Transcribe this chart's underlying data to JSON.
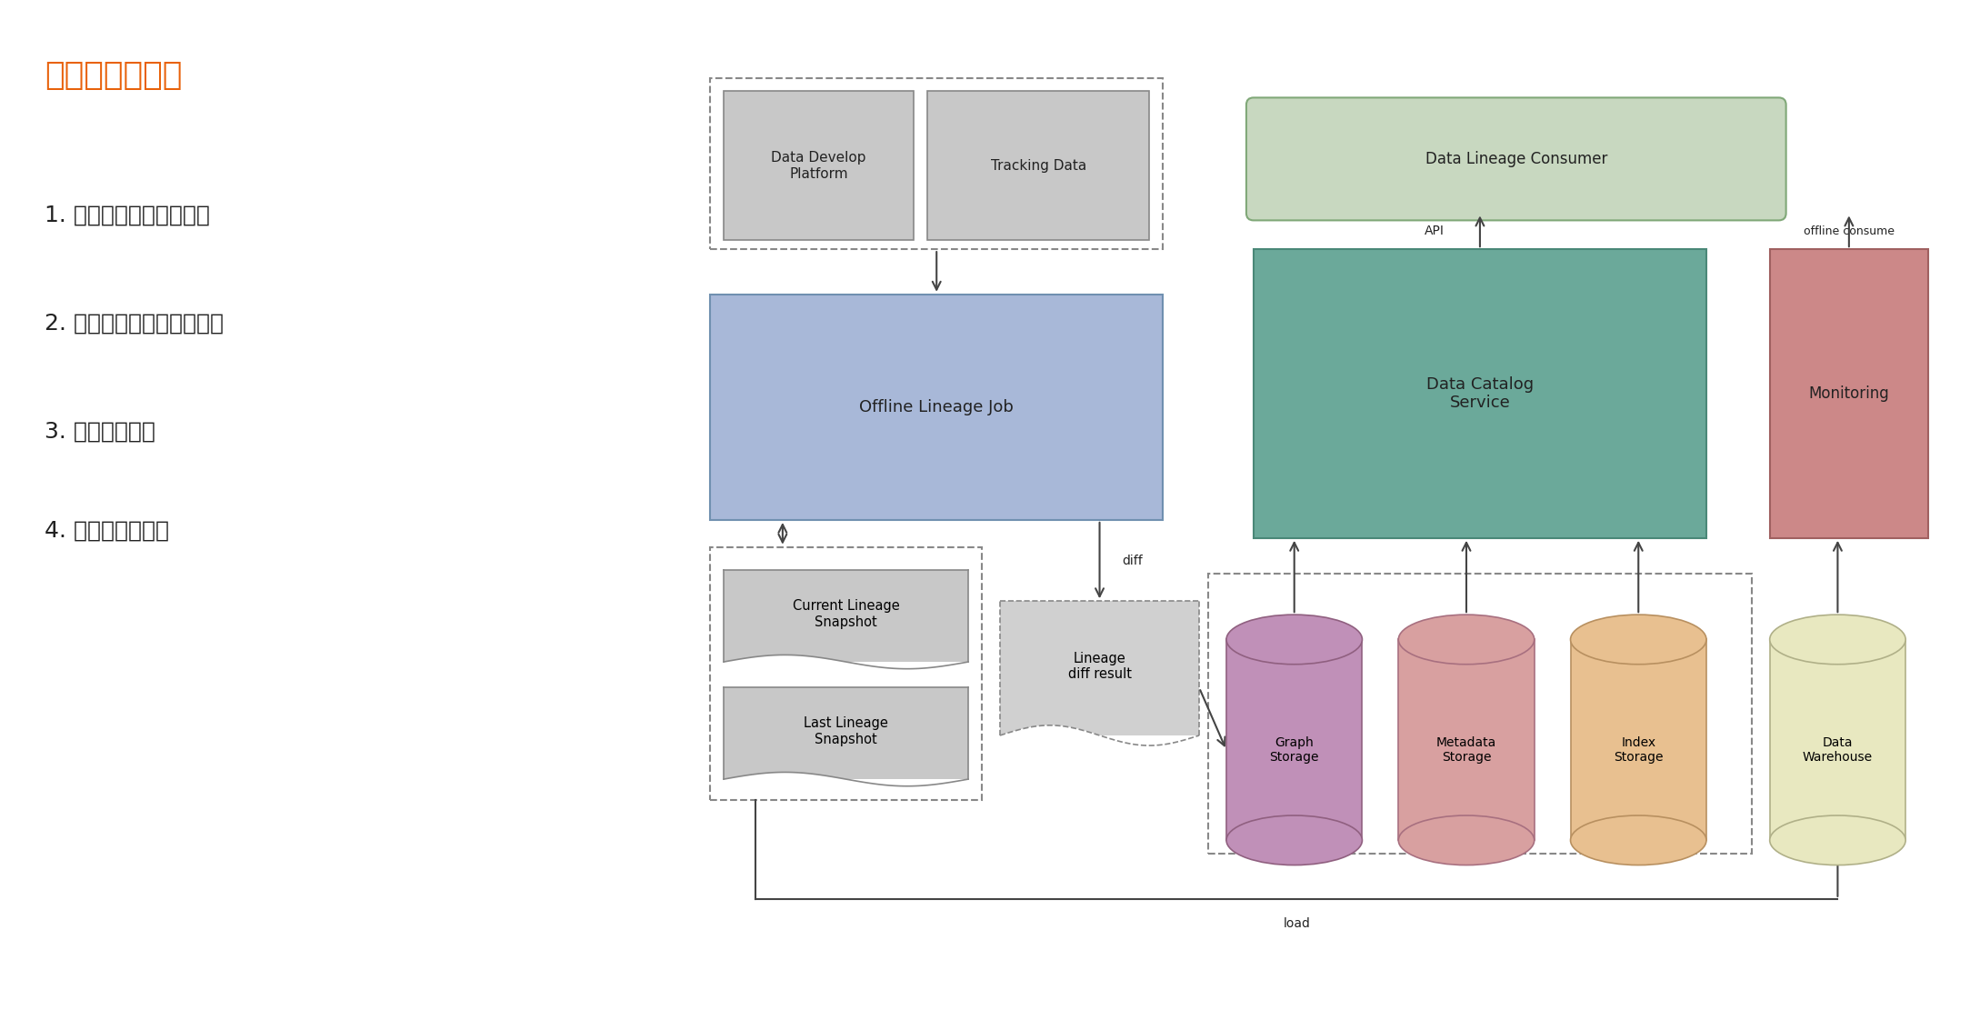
{
  "title": "第二版血缘架构",
  "title_color": "#E8610A",
  "bg_color": "#FFFFFF",
  "bullet_points": [
    "1. 去除元数据的冗余存储",
    "2. 去除血缘统计信息预结算",
    "3. 支持离线消费",
    "4. 全新的存储模型"
  ],
  "font_size_title": 26,
  "font_size_bullets": 18,
  "font_size_boxes": 11,
  "arrow_color": "#444444",
  "colors": {
    "gray_box": "#C8C8C8",
    "gray_ec": "#888888",
    "blue_box": "#A8B8D8",
    "blue_ec": "#7090B0",
    "green_box": "#C8D8C0",
    "green_ec": "#80A878",
    "teal_box": "#6BA99A",
    "teal_ec": "#4A8878",
    "red_box": "#CC8888",
    "red_ec": "#A06060",
    "purple_cyl": "#C090B8",
    "purple_ec": "#906080",
    "pink_cyl": "#D8A0A0",
    "pink_ec": "#A87080",
    "orange_cyl": "#E8C090",
    "orange_ec": "#B89060",
    "yellow_cyl": "#E8E8C0",
    "yellow_ec": "#B0B088",
    "dashed_ec": "#888888",
    "text_dark": "#222222"
  }
}
